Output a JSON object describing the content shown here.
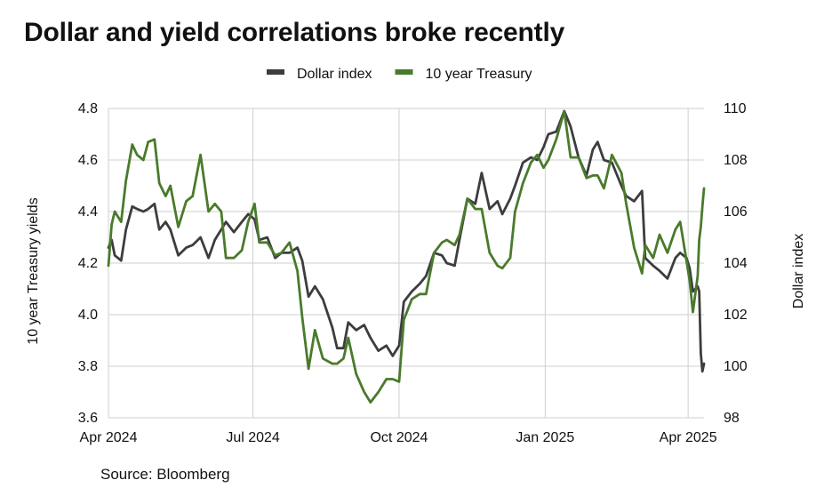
{
  "chart_data": {
    "type": "line",
    "title": "Dollar and yield correlations broke recently",
    "source": "Source: Bloomberg",
    "legend_position": "top-center",
    "grid": true,
    "x_ticks": [
      "Apr 2024",
      "Jul 2024",
      "Oct 2024",
      "Jan 2025",
      "Apr 2025"
    ],
    "x_range": [
      "2024-04-01",
      "2025-04-11"
    ],
    "y_left": {
      "label": "10 year Treasury yields",
      "range": [
        3.6,
        4.8
      ],
      "ticks": [
        "3.6",
        "3.8",
        "4.0",
        "4.2",
        "4.4",
        "4.6",
        "4.8"
      ]
    },
    "y_right": {
      "label": "Dollar index",
      "range": [
        98,
        110
      ],
      "ticks": [
        "98",
        "100",
        "102",
        "104",
        "106",
        "108",
        "110"
      ]
    },
    "series": [
      {
        "name": "Dollar index",
        "axis": "right",
        "color": "#3d3d3f",
        "points": [
          [
            "2024-04-01",
            104.6
          ],
          [
            "2024-04-03",
            104.9
          ],
          [
            "2024-04-05",
            104.3
          ],
          [
            "2024-04-09",
            104.1
          ],
          [
            "2024-04-12",
            105.3
          ],
          [
            "2024-04-16",
            106.2
          ],
          [
            "2024-04-19",
            106.1
          ],
          [
            "2024-04-23",
            106.0
          ],
          [
            "2024-04-26",
            106.1
          ],
          [
            "2024-04-30",
            106.3
          ],
          [
            "2024-05-03",
            105.3
          ],
          [
            "2024-05-07",
            105.6
          ],
          [
            "2024-05-10",
            105.3
          ],
          [
            "2024-05-15",
            104.3
          ],
          [
            "2024-05-20",
            104.6
          ],
          [
            "2024-05-24",
            104.7
          ],
          [
            "2024-05-29",
            105.0
          ],
          [
            "2024-06-03",
            104.2
          ],
          [
            "2024-06-07",
            104.9
          ],
          [
            "2024-06-11",
            105.3
          ],
          [
            "2024-06-14",
            105.6
          ],
          [
            "2024-06-19",
            105.2
          ],
          [
            "2024-06-24",
            105.6
          ],
          [
            "2024-06-28",
            105.9
          ],
          [
            "2024-07-02",
            105.7
          ],
          [
            "2024-07-05",
            104.9
          ],
          [
            "2024-07-10",
            105.0
          ],
          [
            "2024-07-15",
            104.2
          ],
          [
            "2024-07-19",
            104.4
          ],
          [
            "2024-07-24",
            104.4
          ],
          [
            "2024-07-29",
            104.6
          ],
          [
            "2024-08-01",
            104.1
          ],
          [
            "2024-08-05",
            102.7
          ],
          [
            "2024-08-09",
            103.1
          ],
          [
            "2024-08-14",
            102.6
          ],
          [
            "2024-08-20",
            101.5
          ],
          [
            "2024-08-23",
            100.7
          ],
          [
            "2024-08-27",
            100.7
          ],
          [
            "2024-08-30",
            101.7
          ],
          [
            "2024-09-04",
            101.4
          ],
          [
            "2024-09-09",
            101.6
          ],
          [
            "2024-09-13",
            101.1
          ],
          [
            "2024-09-18",
            100.6
          ],
          [
            "2024-09-23",
            100.8
          ],
          [
            "2024-09-27",
            100.4
          ],
          [
            "2024-10-01",
            100.8
          ],
          [
            "2024-10-04",
            102.5
          ],
          [
            "2024-10-09",
            102.9
          ],
          [
            "2024-10-14",
            103.2
          ],
          [
            "2024-10-18",
            103.5
          ],
          [
            "2024-10-23",
            104.4
          ],
          [
            "2024-10-28",
            104.3
          ],
          [
            "2024-10-31",
            104.0
          ],
          [
            "2024-11-05",
            103.9
          ],
          [
            "2024-11-08",
            104.9
          ],
          [
            "2024-11-13",
            106.5
          ],
          [
            "2024-11-18",
            106.3
          ],
          [
            "2024-11-22",
            107.5
          ],
          [
            "2024-11-27",
            106.1
          ],
          [
            "2024-12-02",
            106.4
          ],
          [
            "2024-12-05",
            105.9
          ],
          [
            "2024-12-10",
            106.5
          ],
          [
            "2024-12-13",
            107.0
          ],
          [
            "2024-12-18",
            107.9
          ],
          [
            "2024-12-23",
            108.1
          ],
          [
            "2024-12-27",
            108.0
          ],
          [
            "2024-12-31",
            108.5
          ],
          [
            "2025-01-03",
            109.0
          ],
          [
            "2025-01-08",
            109.1
          ],
          [
            "2025-01-13",
            109.9
          ],
          [
            "2025-01-17",
            109.3
          ],
          [
            "2025-01-22",
            108.1
          ],
          [
            "2025-01-27",
            107.4
          ],
          [
            "2025-01-31",
            108.4
          ],
          [
            "2025-02-03",
            108.7
          ],
          [
            "2025-02-07",
            108.0
          ],
          [
            "2025-02-12",
            107.9
          ],
          [
            "2025-02-18",
            107.0
          ],
          [
            "2025-02-21",
            106.6
          ],
          [
            "2025-02-26",
            106.4
          ],
          [
            "2025-03-03",
            106.8
          ],
          [
            "2025-03-05",
            104.2
          ],
          [
            "2025-03-10",
            103.9
          ],
          [
            "2025-03-14",
            103.7
          ],
          [
            "2025-03-19",
            103.4
          ],
          [
            "2025-03-24",
            104.2
          ],
          [
            "2025-03-27",
            104.4
          ],
          [
            "2025-03-31",
            104.2
          ],
          [
            "2025-04-02",
            103.8
          ],
          [
            "2025-04-04",
            102.9
          ],
          [
            "2025-04-07",
            103.1
          ],
          [
            "2025-04-08",
            102.9
          ],
          [
            "2025-04-09",
            100.5
          ],
          [
            "2025-04-10",
            99.8
          ],
          [
            "2025-04-11",
            100.1
          ]
        ]
      },
      {
        "name": "10 year Treasury",
        "axis": "left",
        "color": "#4a7a2c",
        "points": [
          [
            "2024-04-01",
            4.19
          ],
          [
            "2024-04-03",
            4.35
          ],
          [
            "2024-04-05",
            4.4
          ],
          [
            "2024-04-09",
            4.36
          ],
          [
            "2024-04-12",
            4.52
          ],
          [
            "2024-04-16",
            4.66
          ],
          [
            "2024-04-19",
            4.62
          ],
          [
            "2024-04-23",
            4.6
          ],
          [
            "2024-04-26",
            4.67
          ],
          [
            "2024-04-30",
            4.68
          ],
          [
            "2024-05-03",
            4.51
          ],
          [
            "2024-05-07",
            4.46
          ],
          [
            "2024-05-10",
            4.5
          ],
          [
            "2024-05-15",
            4.34
          ],
          [
            "2024-05-20",
            4.44
          ],
          [
            "2024-05-24",
            4.46
          ],
          [
            "2024-05-29",
            4.62
          ],
          [
            "2024-06-03",
            4.4
          ],
          [
            "2024-06-07",
            4.43
          ],
          [
            "2024-06-11",
            4.4
          ],
          [
            "2024-06-14",
            4.22
          ],
          [
            "2024-06-19",
            4.22
          ],
          [
            "2024-06-24",
            4.25
          ],
          [
            "2024-06-28",
            4.36
          ],
          [
            "2024-07-02",
            4.43
          ],
          [
            "2024-07-05",
            4.28
          ],
          [
            "2024-07-10",
            4.28
          ],
          [
            "2024-07-15",
            4.23
          ],
          [
            "2024-07-19",
            4.24
          ],
          [
            "2024-07-24",
            4.28
          ],
          [
            "2024-07-29",
            4.17
          ],
          [
            "2024-08-01",
            3.99
          ],
          [
            "2024-08-05",
            3.79
          ],
          [
            "2024-08-09",
            3.94
          ],
          [
            "2024-08-14",
            3.83
          ],
          [
            "2024-08-20",
            3.81
          ],
          [
            "2024-08-23",
            3.81
          ],
          [
            "2024-08-27",
            3.83
          ],
          [
            "2024-08-30",
            3.91
          ],
          [
            "2024-09-04",
            3.77
          ],
          [
            "2024-09-09",
            3.7
          ],
          [
            "2024-09-13",
            3.66
          ],
          [
            "2024-09-18",
            3.7
          ],
          [
            "2024-09-23",
            3.75
          ],
          [
            "2024-09-27",
            3.75
          ],
          [
            "2024-10-01",
            3.74
          ],
          [
            "2024-10-04",
            3.98
          ],
          [
            "2024-10-09",
            4.06
          ],
          [
            "2024-10-14",
            4.08
          ],
          [
            "2024-10-18",
            4.08
          ],
          [
            "2024-10-23",
            4.24
          ],
          [
            "2024-10-28",
            4.28
          ],
          [
            "2024-10-31",
            4.29
          ],
          [
            "2024-11-05",
            4.27
          ],
          [
            "2024-11-08",
            4.31
          ],
          [
            "2024-11-13",
            4.45
          ],
          [
            "2024-11-18",
            4.41
          ],
          [
            "2024-11-22",
            4.41
          ],
          [
            "2024-11-27",
            4.24
          ],
          [
            "2024-12-02",
            4.19
          ],
          [
            "2024-12-05",
            4.18
          ],
          [
            "2024-12-10",
            4.22
          ],
          [
            "2024-12-13",
            4.4
          ],
          [
            "2024-12-18",
            4.51
          ],
          [
            "2024-12-23",
            4.59
          ],
          [
            "2024-12-27",
            4.62
          ],
          [
            "2024-12-31",
            4.57
          ],
          [
            "2025-01-03",
            4.6
          ],
          [
            "2025-01-08",
            4.68
          ],
          [
            "2025-01-13",
            4.79
          ],
          [
            "2025-01-17",
            4.61
          ],
          [
            "2025-01-22",
            4.61
          ],
          [
            "2025-01-27",
            4.53
          ],
          [
            "2025-01-31",
            4.54
          ],
          [
            "2025-02-03",
            4.54
          ],
          [
            "2025-02-07",
            4.49
          ],
          [
            "2025-02-12",
            4.62
          ],
          [
            "2025-02-18",
            4.55
          ],
          [
            "2025-02-21",
            4.43
          ],
          [
            "2025-02-26",
            4.26
          ],
          [
            "2025-03-03",
            4.16
          ],
          [
            "2025-03-05",
            4.27
          ],
          [
            "2025-03-10",
            4.22
          ],
          [
            "2025-03-14",
            4.31
          ],
          [
            "2025-03-19",
            4.24
          ],
          [
            "2025-03-24",
            4.33
          ],
          [
            "2025-03-27",
            4.36
          ],
          [
            "2025-03-31",
            4.21
          ],
          [
            "2025-04-02",
            4.13
          ],
          [
            "2025-04-04",
            4.01
          ],
          [
            "2025-04-07",
            4.15
          ],
          [
            "2025-04-08",
            4.29
          ],
          [
            "2025-04-09",
            4.34
          ],
          [
            "2025-04-10",
            4.42
          ],
          [
            "2025-04-11",
            4.49
          ]
        ]
      }
    ]
  }
}
